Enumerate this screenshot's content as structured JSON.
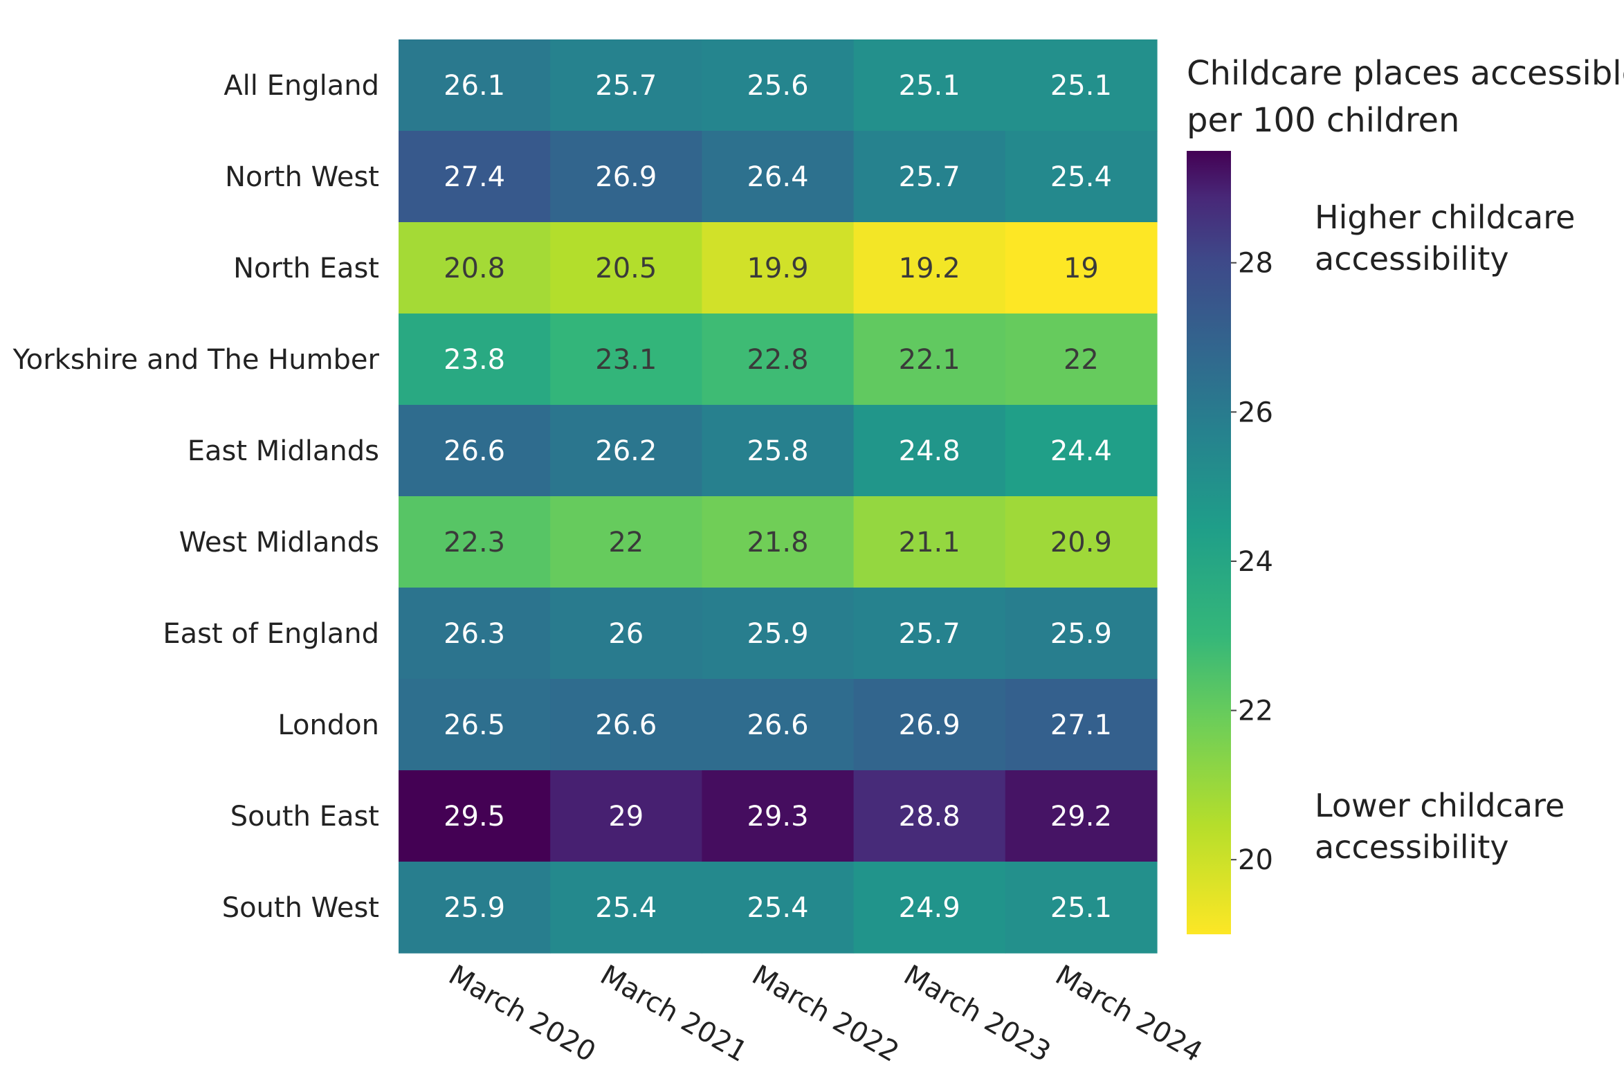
{
  "chart_data": {
    "type": "heatmap",
    "title": "",
    "xlabel": "",
    "ylabel": "",
    "columns": [
      "March 2020",
      "March 2021",
      "March 2022",
      "March 2023",
      "March 2024"
    ],
    "rows": [
      "All England",
      "North West",
      "North East",
      "Yorkshire and The Humber",
      "East Midlands",
      "West Midlands",
      "East of England",
      "London",
      "South East",
      "South West"
    ],
    "values": [
      [
        26.1,
        25.7,
        25.6,
        25.1,
        25.1
      ],
      [
        27.4,
        26.9,
        26.4,
        25.7,
        25.4
      ],
      [
        20.8,
        20.5,
        19.9,
        19.2,
        19
      ],
      [
        23.8,
        23.1,
        22.8,
        22.1,
        22
      ],
      [
        26.6,
        26.2,
        25.8,
        24.8,
        24.4
      ],
      [
        22.3,
        22,
        21.8,
        21.1,
        20.9
      ],
      [
        26.3,
        26,
        25.9,
        25.7,
        25.9
      ],
      [
        26.5,
        26.6,
        26.6,
        26.9,
        27.1
      ],
      [
        29.5,
        29,
        29.3,
        28.8,
        29.2
      ],
      [
        25.9,
        25.4,
        25.4,
        24.9,
        25.1
      ]
    ],
    "value_range": [
      19,
      29.5
    ],
    "colorscale": "viridis (reversed: high = purple, low = yellow)",
    "colorbar": {
      "title_lines": [
        "Childcare places accessible",
        "per 100 children"
      ],
      "ticks": [
        20,
        22,
        24,
        26,
        28
      ],
      "high_note_lines": [
        "Higher childcare",
        "accessibility"
      ],
      "low_note_lines": [
        "Lower childcare",
        "accessibility"
      ]
    }
  }
}
